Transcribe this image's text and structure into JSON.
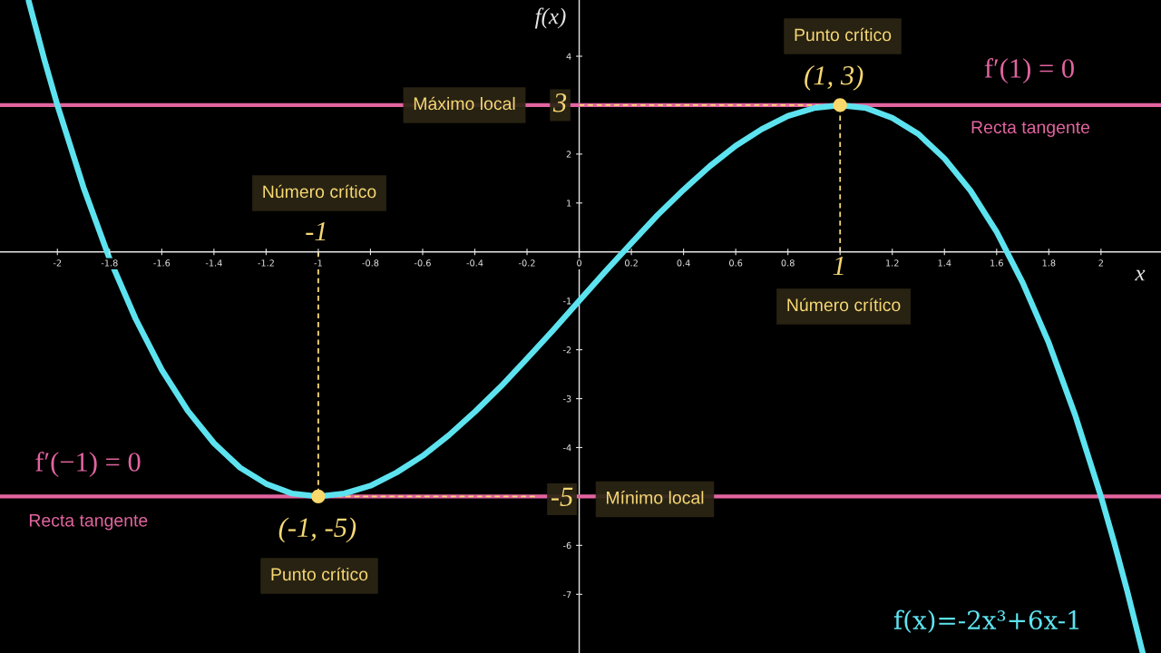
{
  "chart_data": {
    "type": "line",
    "xlabel": "x",
    "ylabel": "f(x)",
    "xlim": [
      -2.22,
      2.23
    ],
    "ylim": [
      -8.2,
      5.15
    ],
    "xticks": [
      -2,
      -1.8,
      -1.6,
      -1.4,
      -1.2,
      -1,
      -0.8,
      -0.6,
      -0.4,
      -0.2,
      0,
      0.2,
      0.4,
      0.6,
      0.8,
      {
        "value": 1,
        "label": null
      },
      1.2,
      1.4,
      1.6,
      1.8,
      2
    ],
    "yticks": [
      4,
      {
        "value": 3,
        "label": null
      },
      2,
      1,
      -1,
      -2,
      -3,
      -4,
      {
        "value": -5,
        "label": null
      },
      -6,
      -7
    ],
    "series": [
      {
        "name": "f(x)=-2x³+6x-1",
        "color": "#5de3f0",
        "line_style": "solid",
        "x": [
          -2.11,
          -2.05,
          -2,
          -1.9,
          -1.8,
          -1.7,
          -1.6,
          -1.5,
          -1.4,
          -1.3,
          -1.2,
          -1.1,
          -1,
          -0.9,
          -0.8,
          -0.7,
          -0.6,
          -0.5,
          -0.4,
          -0.3,
          -0.2,
          -0.1,
          0,
          0.1,
          0.2,
          0.3,
          0.4,
          0.5,
          0.6,
          0.7,
          0.8,
          0.9,
          1,
          1.1,
          1.2,
          1.3,
          1.4,
          1.5,
          1.6,
          1.7,
          1.8,
          1.9,
          2,
          2.05,
          2.1,
          2.16
        ],
        "values": [
          5.13,
          3.93,
          3,
          1.32,
          -0.14,
          -1.37,
          -2.41,
          -3.25,
          -3.91,
          -4.41,
          -4.74,
          -4.94,
          -5,
          -4.94,
          -4.78,
          -4.51,
          -4.17,
          -3.75,
          -3.27,
          -2.75,
          -2.18,
          -1.6,
          -1,
          -0.4,
          0.18,
          0.75,
          1.27,
          1.75,
          2.17,
          2.51,
          2.78,
          2.94,
          3,
          2.94,
          2.74,
          2.41,
          1.91,
          1.25,
          0.41,
          -0.63,
          -1.86,
          -3.32,
          -5,
          -5.93,
          -6.92,
          -8.2
        ]
      },
      {
        "color": "#f6d873",
        "line_style": "dashed",
        "x": [
          -1,
          -1,
          -0.17
        ],
        "values": [
          0,
          -5,
          -5
        ]
      },
      {
        "color": "#f6d873",
        "line_style": "dashed",
        "x": [
          1,
          1,
          0
        ],
        "values": [
          0,
          3,
          3
        ]
      },
      {
        "type": "scatter",
        "color": "#f9d86b",
        "marker": "circle",
        "x": [
          -1,
          1
        ],
        "values": [
          -5,
          3
        ]
      }
    ],
    "ref_lines": [
      {
        "axis": "y",
        "value": 3,
        "label": "Recta tangente",
        "color": "#e2649f"
      },
      {
        "axis": "y",
        "value": -5,
        "label": "Recta tangente",
        "color": "#e2649f"
      }
    ],
    "annotations": [
      "Punto crítico",
      {
        "text": "(1, 3)",
        "x": 1,
        "y": 3
      },
      "f′(1) = 0",
      {
        "text": "Máximo local",
        "x": -0.44,
        "y": 3
      },
      {
        "text": "3",
        "x": 0,
        "y": 3
      },
      "Número crítico",
      {
        "text": "-1",
        "x": -1,
        "y": 0
      },
      {
        "text": "1",
        "x": 1,
        "y": 0
      },
      "Número crítico",
      "f′(−1) = 0",
      {
        "text": "(-1, -5)",
        "x": -1,
        "y": -5
      },
      "Punto crítico",
      {
        "text": "-5",
        "x": 0,
        "y": -5
      },
      {
        "text": "Mínimo local",
        "x": 0.29,
        "y": -5
      }
    ]
  }
}
